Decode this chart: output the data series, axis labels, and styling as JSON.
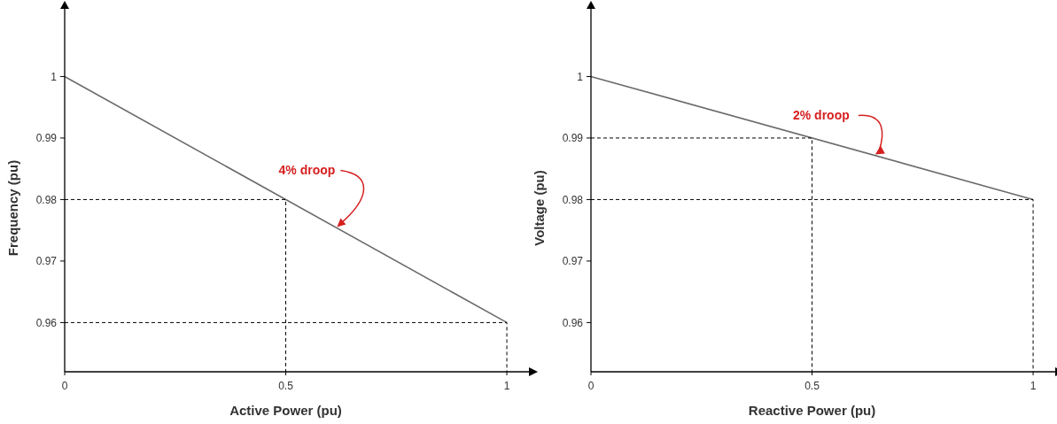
{
  "chart_data": [
    {
      "type": "line",
      "xlabel": "Active Power (pu)",
      "ylabel": "Frequency (pu)",
      "xlim": [
        0,
        1.05
      ],
      "ylim": [
        0.952,
        1.011
      ],
      "xticks": [
        0,
        0.5,
        1
      ],
      "yticks": [
        0.96,
        0.97,
        0.98,
        0.99,
        1
      ],
      "grid": false,
      "marker": "none",
      "series": [
        {
          "color": "#6b6b6b",
          "x": [
            0,
            1
          ],
          "values": [
            1,
            0.96
          ],
          "line_style": "solid"
        },
        {
          "color": "#000000",
          "x": [
            0,
            0.5,
            0.5
          ],
          "values": [
            0.98,
            0.98,
            0.952
          ],
          "line_style": "dashed"
        },
        {
          "color": "#000000",
          "x": [
            0,
            1,
            1
          ],
          "values": [
            0.96,
            0.96,
            0.952
          ],
          "line_style": "dashed"
        }
      ],
      "annotations": [
        {
          "text": "4% droop",
          "x": 0.614,
          "y": 0.9754
        }
      ]
    },
    {
      "type": "line",
      "xlabel": "Reactive Power (pu)",
      "ylabel": "Voltage (pu)",
      "xlim": [
        0,
        1.05
      ],
      "ylim": [
        0.952,
        1.011
      ],
      "xticks": [
        0,
        0.5,
        1
      ],
      "yticks": [
        0.96,
        0.97,
        0.98,
        0.99,
        1
      ],
      "grid": false,
      "marker": "none",
      "series": [
        {
          "color": "#6b6b6b",
          "x": [
            0,
            1
          ],
          "values": [
            1,
            0.98
          ],
          "line_style": "solid"
        },
        {
          "color": "#000000",
          "x": [
            0,
            0.5,
            0.5
          ],
          "values": [
            0.99,
            0.99,
            0.952
          ],
          "line_style": "dashed"
        },
        {
          "color": "#000000",
          "x": [
            0,
            1,
            1
          ],
          "values": [
            0.98,
            0.98,
            0.952
          ],
          "line_style": "dashed"
        }
      ],
      "annotations": [
        {
          "text": "2% droop",
          "x": 0.641,
          "y": 0.9872
        }
      ]
    }
  ]
}
